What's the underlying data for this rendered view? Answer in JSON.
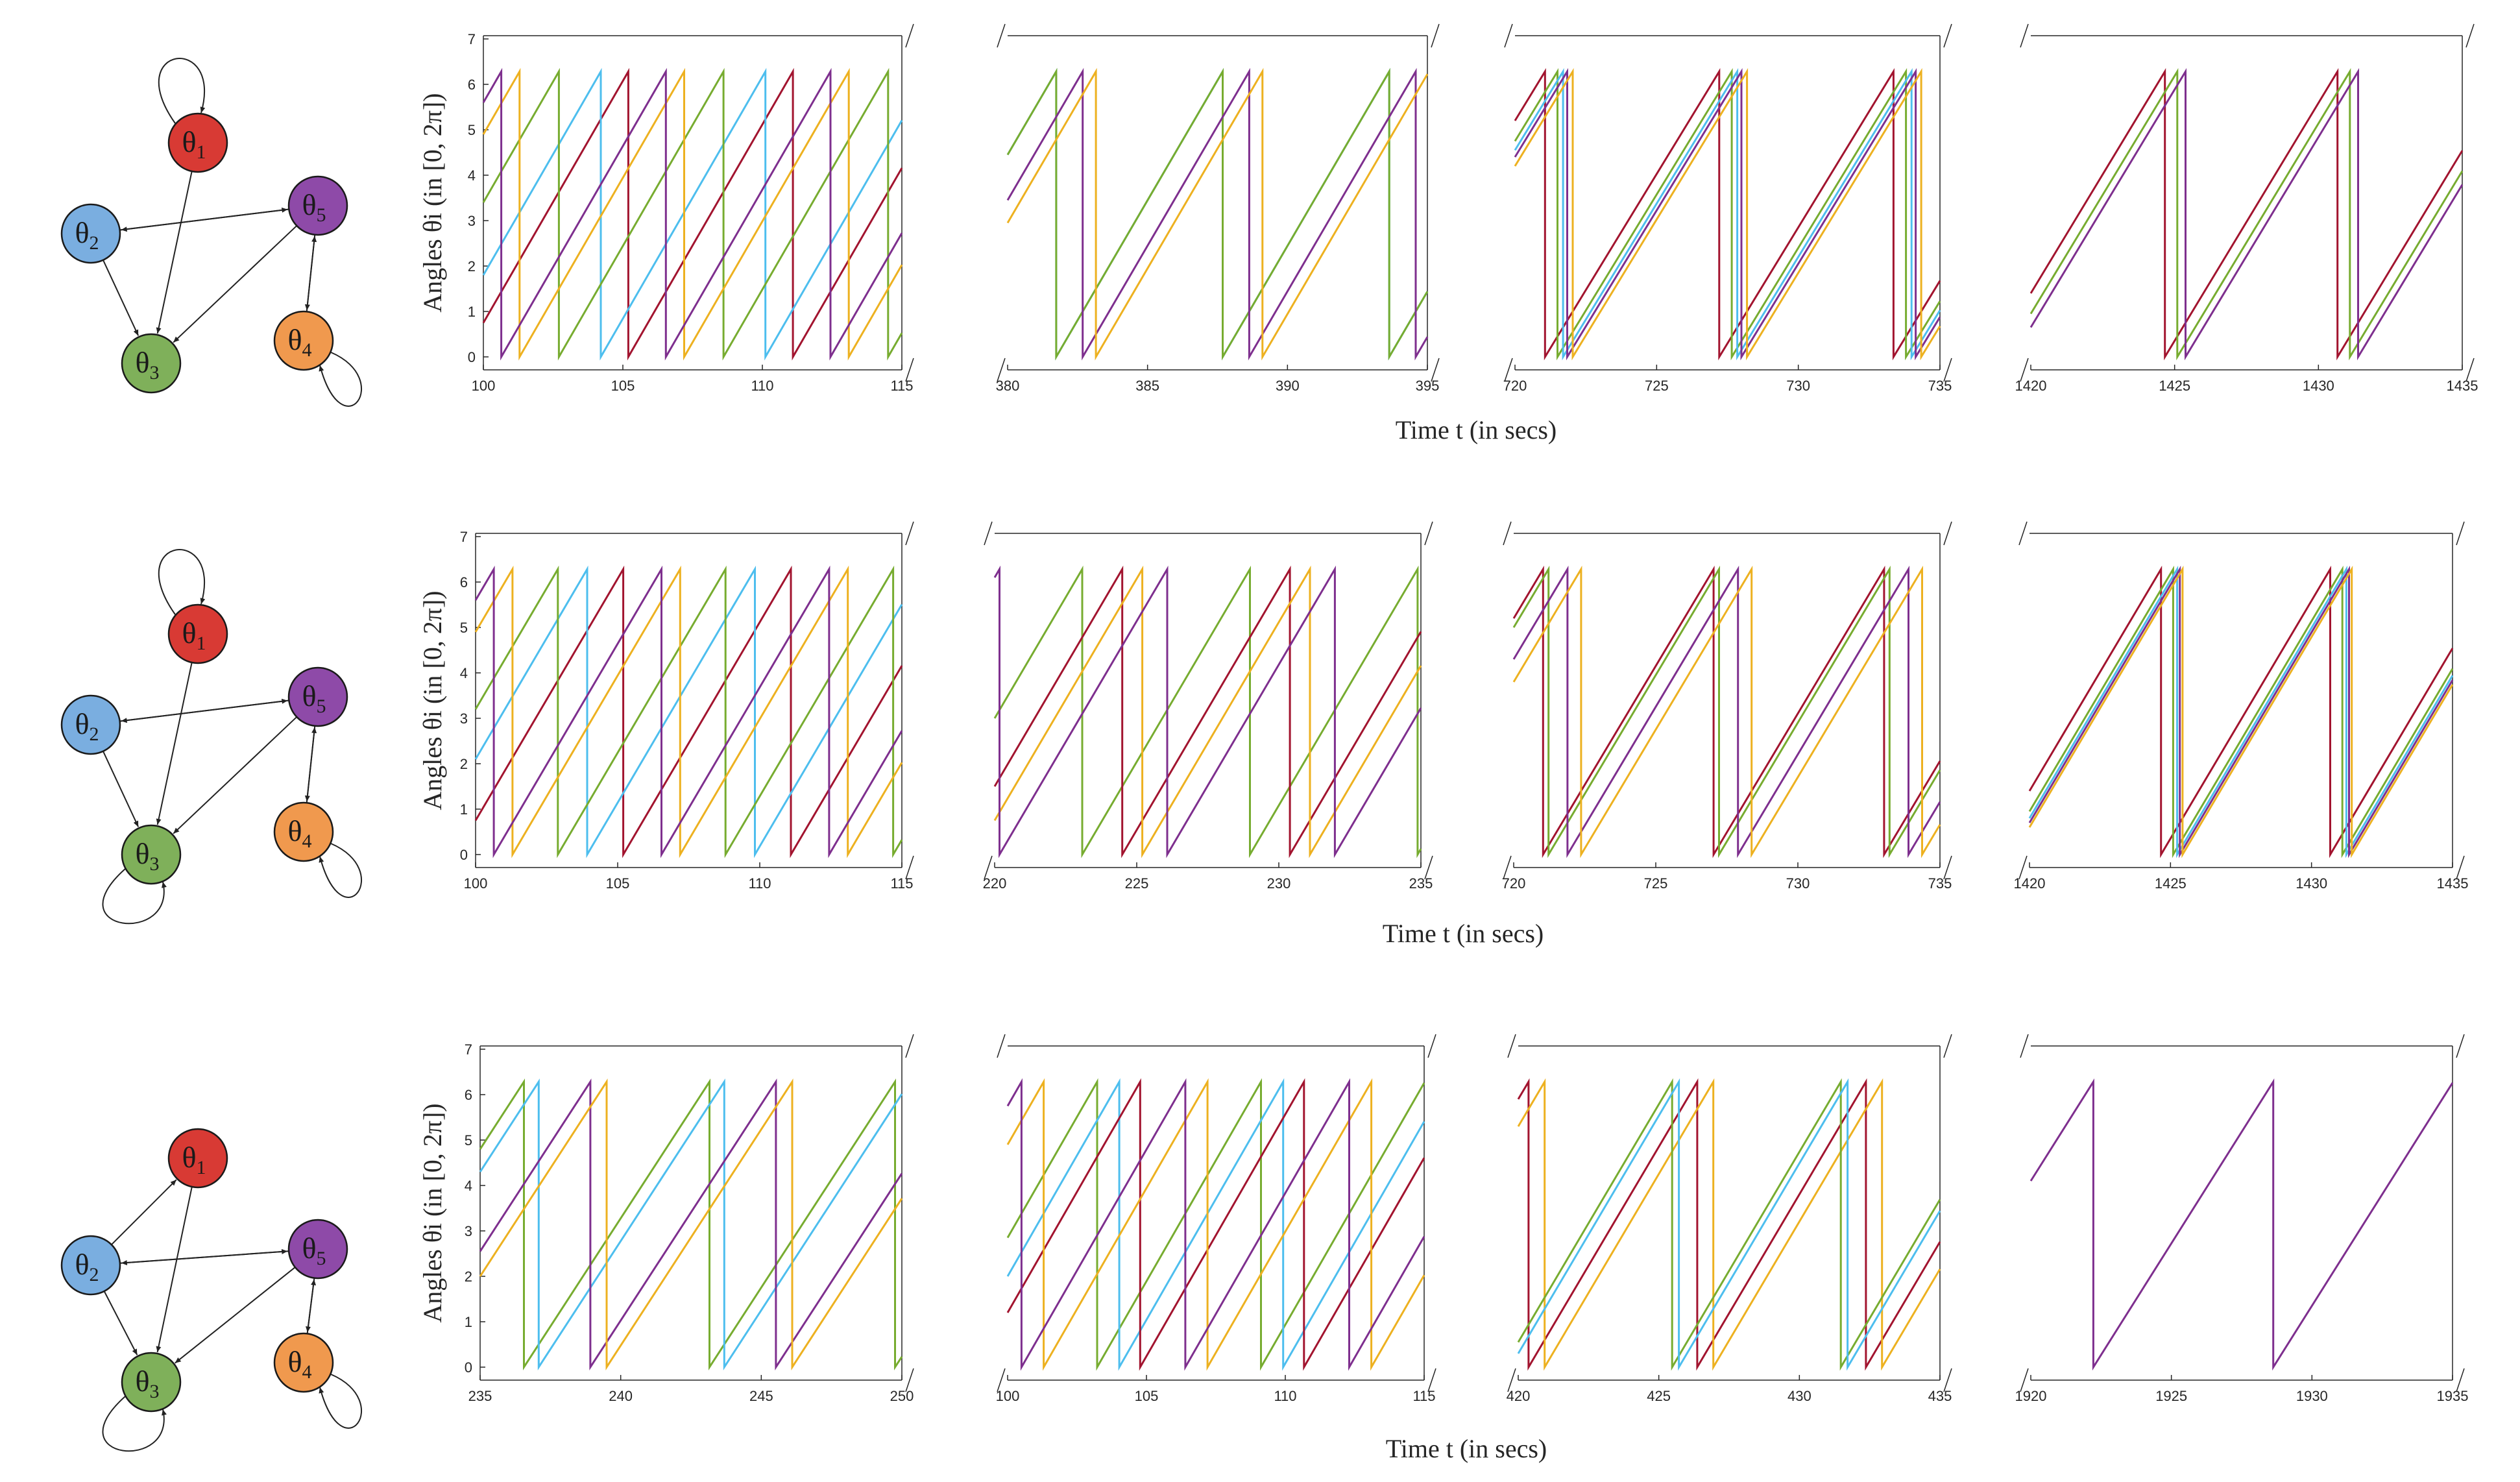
{
  "x_label": "Time t (in secs)",
  "y_label": "Angles θi (in [0, 2π])",
  "nodes": [
    {
      "id": "1",
      "label": "θ1",
      "color": "#d83a34"
    },
    {
      "id": "2",
      "label": "θ2",
      "color": "#7aaee0"
    },
    {
      "id": "3",
      "label": "θ3",
      "color": "#7fb05a"
    },
    {
      "id": "4",
      "label": "θ4",
      "color": "#f0994e"
    },
    {
      "id": "5",
      "label": "θ5",
      "color": "#8e4aa8"
    }
  ],
  "series_colors": {
    "red": "#a2142f",
    "cyan": "#4dbeee",
    "green": "#77ac30",
    "orange": "#edb120",
    "purple": "#7e2f8e"
  },
  "rows": [
    {
      "graph": {
        "edges": [
          [
            "1",
            "1"
          ],
          [
            "1",
            "3"
          ],
          [
            "2",
            "3"
          ],
          [
            "5",
            "2"
          ],
          [
            "2",
            "5"
          ],
          [
            "5",
            "3"
          ],
          [
            "4",
            "5"
          ],
          [
            "5",
            "4"
          ],
          [
            "4",
            "4"
          ]
        ]
      },
      "panels": [
        {
          "x_ticks": [
            "100",
            "105",
            "110",
            "115"
          ],
          "xlim": [
            100,
            115
          ]
        },
        {
          "x_ticks": [
            "380",
            "385",
            "390",
            "395"
          ],
          "xlim": [
            380,
            395
          ]
        },
        {
          "x_ticks": [
            "720",
            "725",
            "730",
            "735"
          ],
          "xlim": [
            720,
            735
          ]
        },
        {
          "x_ticks": [
            "1420",
            "1425",
            "1430",
            "1435"
          ],
          "xlim": [
            1420,
            1435
          ]
        }
      ]
    },
    {
      "graph": {
        "edges": [
          [
            "1",
            "1"
          ],
          [
            "1",
            "3"
          ],
          [
            "2",
            "3"
          ],
          [
            "3",
            "3"
          ],
          [
            "5",
            "2"
          ],
          [
            "2",
            "5"
          ],
          [
            "5",
            "3"
          ],
          [
            "4",
            "5"
          ],
          [
            "5",
            "4"
          ],
          [
            "4",
            "4"
          ]
        ]
      },
      "panels": [
        {
          "x_ticks": [
            "100",
            "105",
            "110",
            "115"
          ],
          "xlim": [
            100,
            115
          ]
        },
        {
          "x_ticks": [
            "220",
            "225",
            "230",
            "235"
          ],
          "xlim": [
            220,
            235
          ]
        },
        {
          "x_ticks": [
            "720",
            "725",
            "730",
            "735"
          ],
          "xlim": [
            720,
            735
          ]
        },
        {
          "x_ticks": [
            "1420",
            "1425",
            "1430",
            "1435"
          ],
          "xlim": [
            1420,
            1435
          ]
        }
      ]
    },
    {
      "graph": {
        "edges": [
          [
            "2",
            "1"
          ],
          [
            "1",
            "3"
          ],
          [
            "2",
            "3"
          ],
          [
            "3",
            "3"
          ],
          [
            "5",
            "2"
          ],
          [
            "2",
            "5"
          ],
          [
            "5",
            "3"
          ],
          [
            "4",
            "5"
          ],
          [
            "5",
            "4"
          ],
          [
            "4",
            "4"
          ]
        ]
      },
      "panels": [
        {
          "x_ticks": [
            "235",
            "240",
            "245",
            "250"
          ],
          "xlim": [
            235,
            250
          ]
        },
        {
          "x_ticks": [
            "100",
            "105",
            "110",
            "115"
          ],
          "xlim": [
            100,
            115
          ]
        },
        {
          "x_ticks": [
            "420",
            "425",
            "430",
            "435"
          ],
          "xlim": [
            420,
            435
          ]
        },
        {
          "x_ticks": [
            "1920",
            "1925",
            "1930",
            "1935"
          ],
          "xlim": [
            1920,
            1935
          ]
        }
      ]
    }
  ],
  "chart_data": {
    "type": "line",
    "ylabel": "Angles θi (in [0, 2π])",
    "xlabel": "Time t (in secs)",
    "ylim": [
      0,
      6.283
    ],
    "y_ticks": [
      "0",
      "1",
      "2",
      "3",
      "4",
      "5",
      "6",
      "7"
    ],
    "panels": [
      {
        "row": 1,
        "xlim": [
          100,
          115
        ],
        "series": [
          {
            "color": "red",
            "phase": 0.75,
            "period": 5.9
          },
          {
            "color": "cyan",
            "phase": 1.8,
            "period": 5.9
          },
          {
            "color": "green",
            "phase": 3.4,
            "period": 5.9
          },
          {
            "color": "orange",
            "phase": 4.9,
            "period": 5.9
          },
          {
            "color": "purple",
            "phase": 5.6,
            "period": 5.9
          }
        ]
      },
      {
        "row": 1,
        "xlim": [
          380,
          395
        ],
        "series": [
          {
            "color": "cyan",
            "phase": 4.45,
            "period": 5.95
          },
          {
            "color": "green",
            "phase": 4.45,
            "period": 5.95
          },
          {
            "color": "purple",
            "phase": 3.45,
            "period": 5.95
          },
          {
            "color": "orange",
            "phase": 2.95,
            "period": 5.95
          }
        ]
      },
      {
        "row": 1,
        "xlim": [
          720,
          735
        ],
        "series": [
          {
            "color": "red",
            "phase": 5.2,
            "period": 6.15
          },
          {
            "color": "green",
            "phase": 4.75,
            "period": 6.15
          },
          {
            "color": "cyan",
            "phase": 4.55,
            "period": 6.15
          },
          {
            "color": "purple",
            "phase": 4.4,
            "period": 6.15
          },
          {
            "color": "orange",
            "phase": 4.2,
            "period": 6.15
          }
        ]
      },
      {
        "row": 1,
        "xlim": [
          1420,
          1435
        ],
        "series": [
          {
            "color": "red",
            "phase": 1.4,
            "period": 6.0
          },
          {
            "color": "green",
            "phase": 0.95,
            "period": 6.0
          },
          {
            "color": "purple",
            "phase": 0.65,
            "period": 6.0
          }
        ]
      },
      {
        "row": 2,
        "xlim": [
          100,
          115
        ],
        "series": [
          {
            "color": "red",
            "phase": 0.75,
            "period": 5.9
          },
          {
            "color": "cyan",
            "phase": 2.1,
            "period": 5.9
          },
          {
            "color": "green",
            "phase": 3.2,
            "period": 5.9
          },
          {
            "color": "orange",
            "phase": 4.9,
            "period": 5.9
          },
          {
            "color": "purple",
            "phase": 5.6,
            "period": 5.9
          }
        ]
      },
      {
        "row": 2,
        "xlim": [
          220,
          235
        ],
        "series": [
          {
            "color": "green",
            "phase": 3.0,
            "period": 5.9
          },
          {
            "color": "red",
            "phase": 1.5,
            "period": 5.9
          },
          {
            "color": "orange",
            "phase": 0.75,
            "period": 5.9
          },
          {
            "color": "purple",
            "phase": 6.1,
            "period": 5.9
          }
        ]
      },
      {
        "row": 2,
        "xlim": [
          720,
          735
        ],
        "series": [
          {
            "color": "red",
            "phase": 5.2,
            "period": 6.0
          },
          {
            "color": "green",
            "phase": 5.0,
            "period": 6.0
          },
          {
            "color": "purple",
            "phase": 4.3,
            "period": 6.0
          },
          {
            "color": "orange",
            "phase": 3.8,
            "period": 6.0
          }
        ]
      },
      {
        "row": 2,
        "xlim": [
          1420,
          1435
        ],
        "series": [
          {
            "color": "red",
            "phase": 1.4,
            "period": 6.0
          },
          {
            "color": "green",
            "phase": 0.95,
            "period": 6.0
          },
          {
            "color": "cyan",
            "phase": 0.8,
            "period": 6.0
          },
          {
            "color": "purple",
            "phase": 0.7,
            "period": 6.0
          },
          {
            "color": "orange",
            "phase": 0.6,
            "period": 6.0
          }
        ]
      },
      {
        "row": 3,
        "xlim": [
          235,
          250
        ],
        "series": [
          {
            "color": "green",
            "phase": 4.8,
            "period": 6.6
          },
          {
            "color": "cyan",
            "phase": 4.3,
            "period": 6.6
          },
          {
            "color": "purple",
            "phase": 2.55,
            "period": 6.6
          },
          {
            "color": "orange",
            "phase": 2.0,
            "period": 6.6
          }
        ]
      },
      {
        "row": 3,
        "xlim": [
          100,
          115
        ],
        "series": [
          {
            "color": "green",
            "phase": 2.85,
            "period": 5.9
          },
          {
            "color": "cyan",
            "phase": 2.0,
            "period": 5.9
          },
          {
            "color": "red",
            "phase": 1.2,
            "period": 5.9
          },
          {
            "color": "orange",
            "phase": 4.9,
            "period": 5.9
          },
          {
            "color": "purple",
            "phase": 5.75,
            "period": 5.9
          }
        ]
      },
      {
        "row": 3,
        "xlim": [
          420,
          435
        ],
        "series": [
          {
            "color": "red",
            "phase": 5.9,
            "period": 6.0
          },
          {
            "color": "orange",
            "phase": 5.3,
            "period": 6.0
          },
          {
            "color": "green",
            "phase": 0.55,
            "period": 6.0
          },
          {
            "color": "cyan",
            "phase": 0.3,
            "period": 6.0
          }
        ]
      },
      {
        "row": 3,
        "xlim": [
          1920,
          1935
        ],
        "series": [
          {
            "color": "purple",
            "phase": 4.1,
            "period": 6.4
          }
        ]
      }
    ]
  }
}
